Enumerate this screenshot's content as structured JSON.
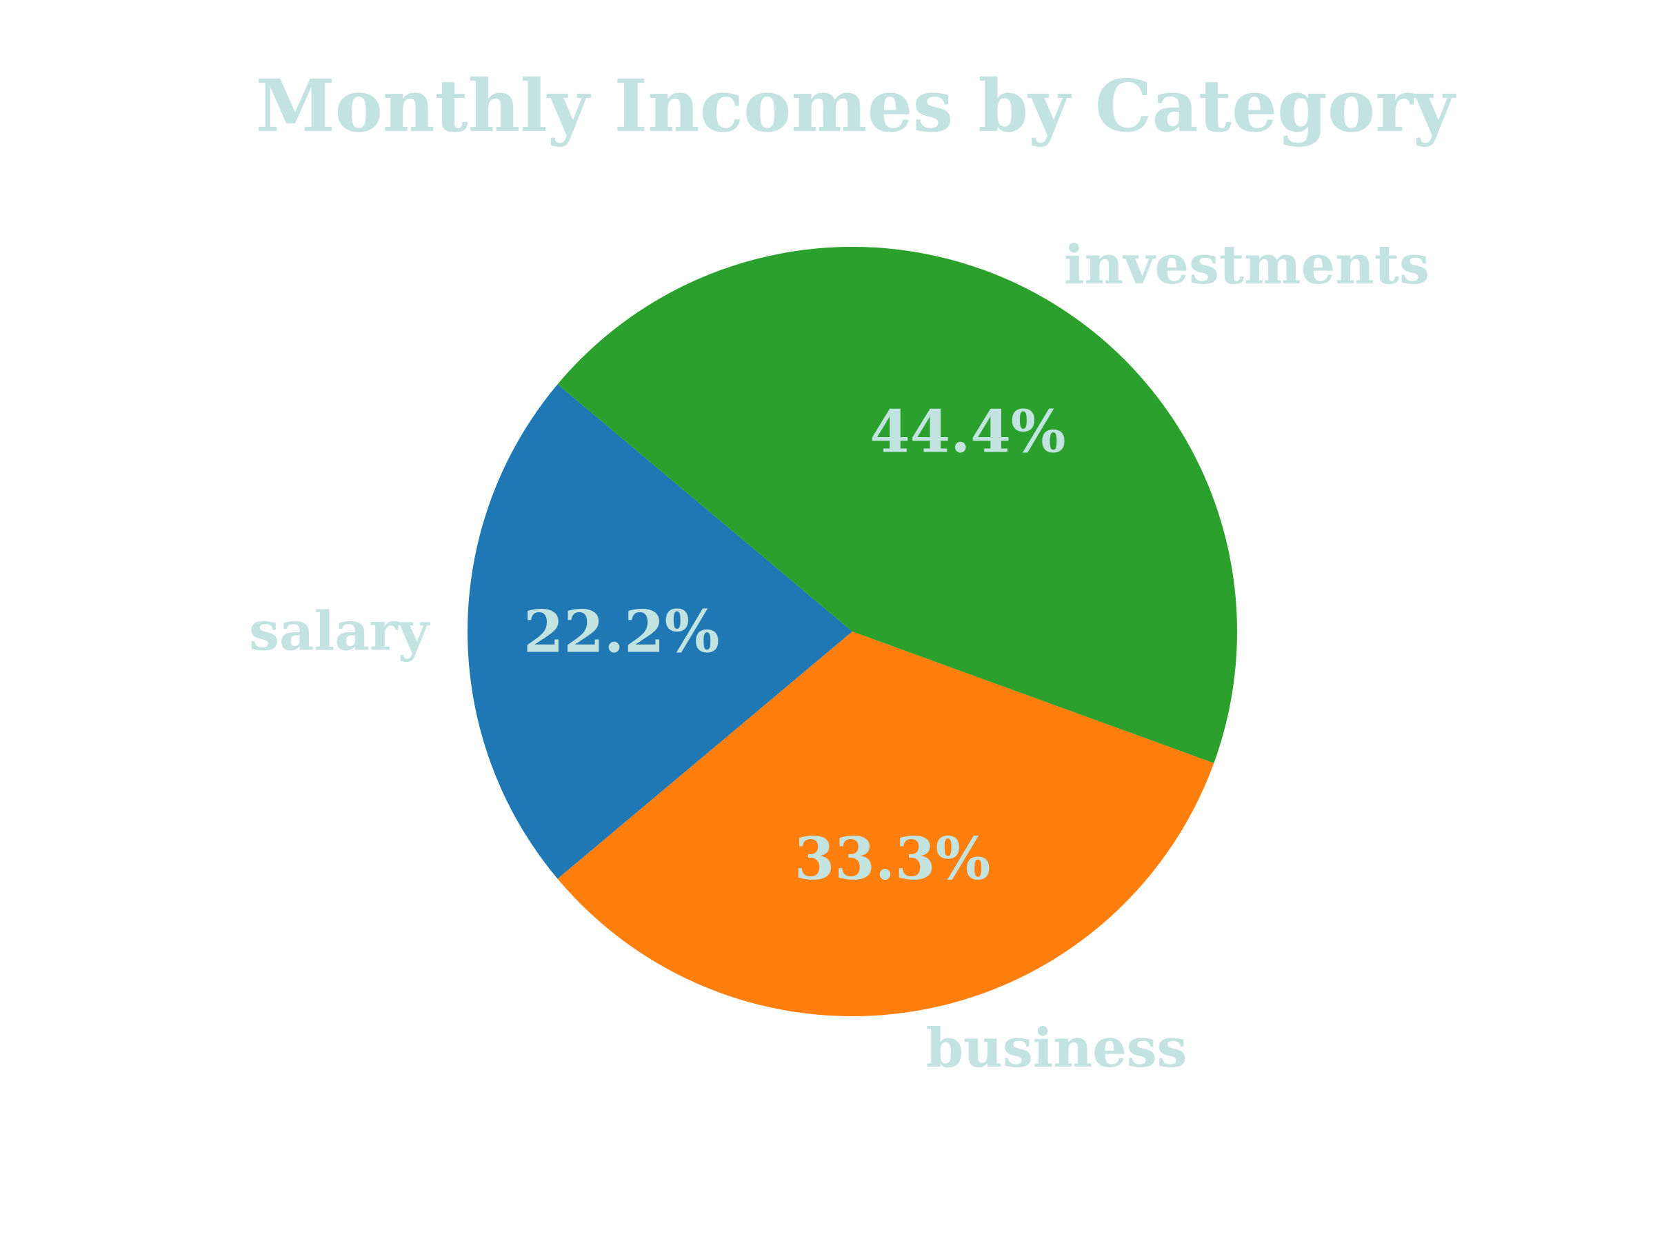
{
  "chart_data": {
    "type": "pie",
    "title": "Monthly Incomes by Category",
    "categories": [
      "salary",
      "business",
      "investments"
    ],
    "values": [
      22.2,
      33.3,
      44.4
    ],
    "value_labels": [
      "22.2%",
      "33.3%",
      "44.4%"
    ],
    "colors": [
      "#1f77b4",
      "#ff7f0e",
      "#2ca02c"
    ],
    "text_color": "#c2e3df",
    "label_color": "#c2e3df",
    "start_angle_deg": 140,
    "direction": "counterclockwise",
    "legend": "none"
  }
}
